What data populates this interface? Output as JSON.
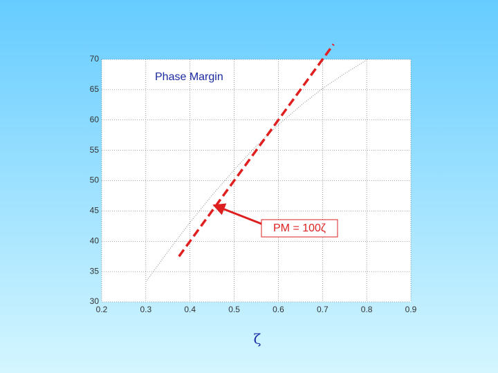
{
  "chart_data": {
    "type": "line",
    "title": "Phase Margin",
    "xlabel": "ζ",
    "annotation": "PM = 100ζ",
    "xlim": [
      0.2,
      0.9
    ],
    "ylim": [
      30,
      70
    ],
    "xticks": [
      0.2,
      0.3,
      0.4,
      0.5,
      0.6,
      0.7,
      0.8,
      0.9
    ],
    "yticks": [
      30,
      35,
      40,
      45,
      50,
      55,
      60,
      65,
      70
    ],
    "grid": true,
    "series": [
      {
        "color": "#9a9a9a",
        "dash": "dotted",
        "x": [
          0.3,
          0.35,
          0.4,
          0.45,
          0.5,
          0.55,
          0.6,
          0.65,
          0.7,
          0.75,
          0.8
        ],
        "values": [
          33.3,
          38.3,
          43.1,
          47.6,
          51.8,
          55.7,
          59.2,
          62.35,
          65.2,
          67.65,
          69.9
        ]
      },
      {
        "color": "#e02020",
        "dash": "dashed",
        "x": [
          0.375,
          0.725
        ],
        "values": [
          37.5,
          72.5
        ]
      }
    ]
  }
}
